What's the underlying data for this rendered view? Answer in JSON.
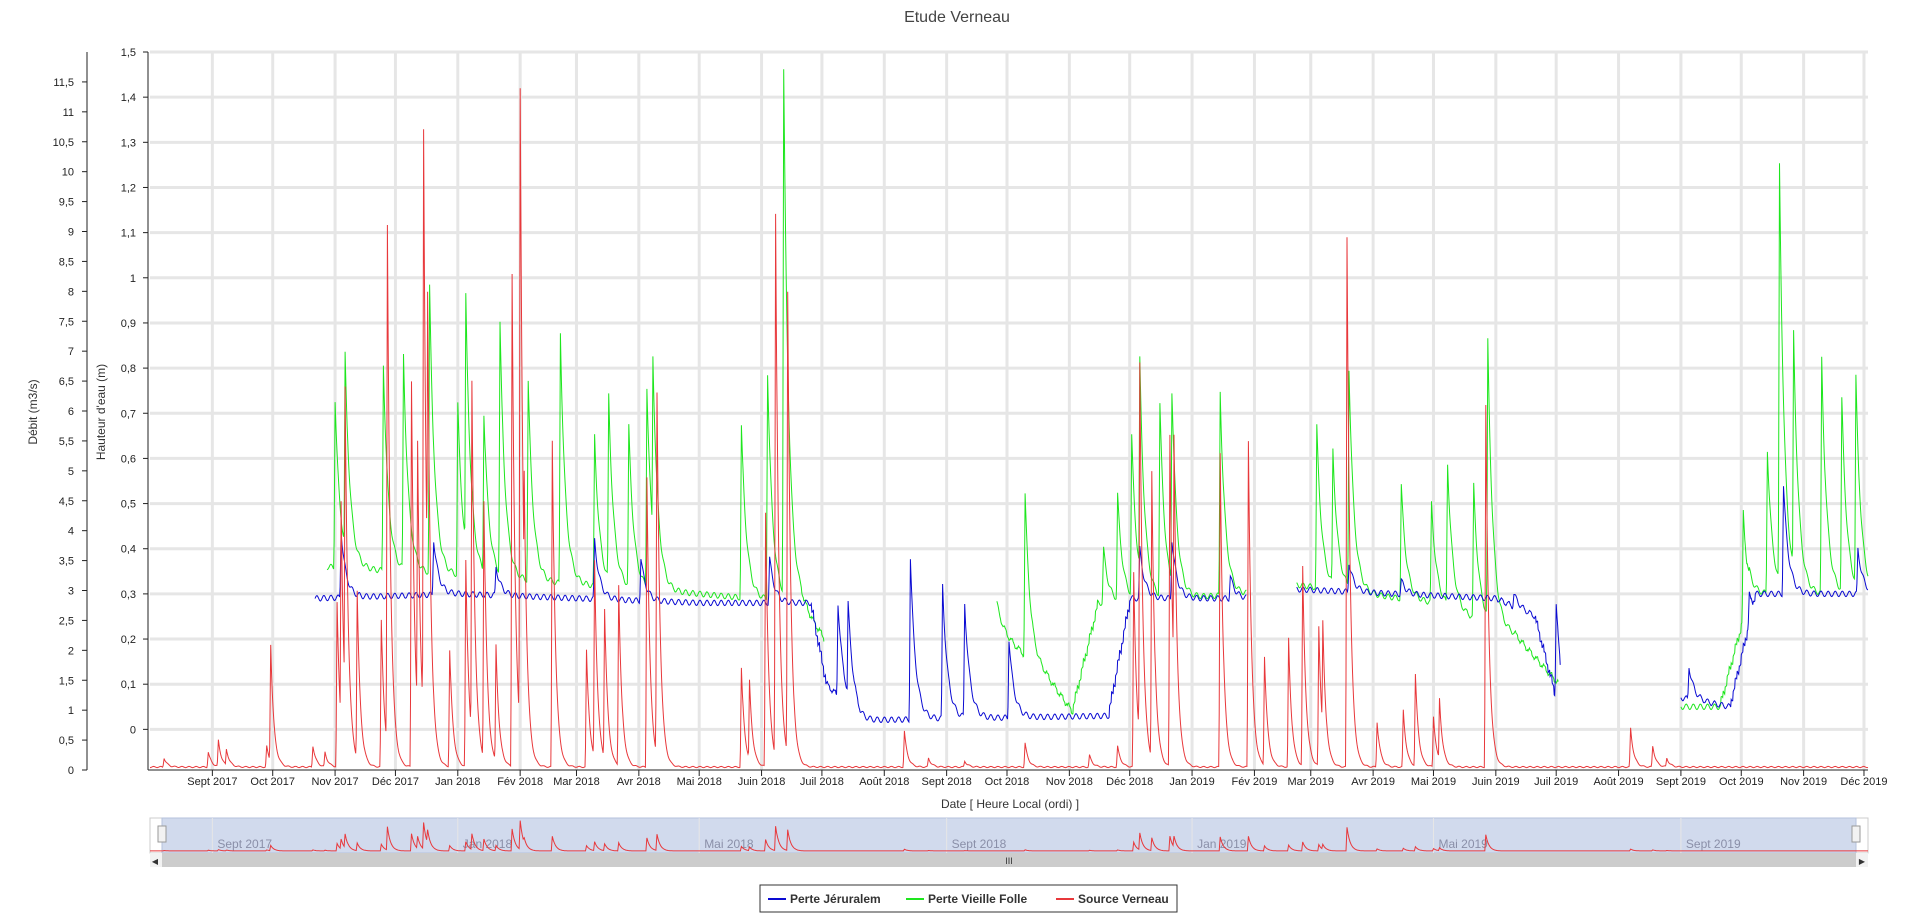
{
  "chart_data": {
    "type": "line",
    "title": "Etude Verneau",
    "xlabel": "Date [ Heure Local (ordi) ]",
    "ylabel_left": "Débit (m3/s)",
    "ylabel_right": "Hauteur d'eau (m)",
    "x_ticks": [
      "Sept 2017",
      "Oct 2017",
      "Nov 2017",
      "Déc 2017",
      "Jan 2018",
      "Fév 2018",
      "Mar 2018",
      "Avr 2018",
      "Mai 2018",
      "Juin 2018",
      "Juil 2018",
      "Août 2018",
      "Sept 2018",
      "Oct 2018",
      "Nov 2018",
      "Déc 2018",
      "Jan 2019",
      "Fév 2019",
      "Mar 2019",
      "Avr 2019",
      "Mai 2019",
      "Juin 2019",
      "Juil 2019",
      "Août 2019",
      "Sept 2019",
      "Oct 2019",
      "Nov 2019",
      "Déc 2019"
    ],
    "x_range": [
      "2017-08-01",
      "2019-12-03"
    ],
    "ylim_debit": [
      0,
      12
    ],
    "ylim_hauteur": [
      -0.09,
      1.5
    ],
    "y_ticks_debit": [
      "0",
      "0,5",
      "1",
      "1,5",
      "2",
      "2,5",
      "3",
      "3,5",
      "4",
      "4,5",
      "5",
      "5,5",
      "6",
      "6,5",
      "7",
      "7,5",
      "8",
      "8,5",
      "9",
      "9,5",
      "10",
      "10,5",
      "11",
      "11,5"
    ],
    "y_ticks_hauteur": [
      "0",
      "0,1",
      "0,2",
      "0,3",
      "0,4",
      "0,5",
      "0,6",
      "0,7",
      "0,8",
      "0,9",
      "1",
      "1,1",
      "1,2",
      "1,3",
      "1,4",
      "1,5"
    ],
    "grid": true,
    "legend_position": "bottom-center",
    "series": [
      {
        "name": "Source Verneau",
        "axis": "debit",
        "color": "#e8383b",
        "baseline": 0.05,
        "peaks": [
          [
            "2017-08-08",
            0.2
          ],
          [
            "2017-08-30",
            0.3
          ],
          [
            "2017-09-04",
            0.5
          ],
          [
            "2017-09-08",
            0.35
          ],
          [
            "2017-09-28",
            0.4
          ],
          [
            "2017-09-30",
            2.1
          ],
          [
            "2017-10-21",
            0.4
          ],
          [
            "2017-10-27",
            0.3
          ],
          [
            "2017-11-02",
            2.8
          ],
          [
            "2017-11-04",
            4.5
          ],
          [
            "2017-11-06",
            6.4
          ],
          [
            "2017-11-12",
            3.0
          ],
          [
            "2017-11-24",
            2.5
          ],
          [
            "2017-11-27",
            9.1
          ],
          [
            "2017-12-09",
            6.5
          ],
          [
            "2017-12-12",
            5.5
          ],
          [
            "2017-12-15",
            10.7
          ],
          [
            "2017-12-17",
            8.0
          ],
          [
            "2017-12-28",
            2.0
          ],
          [
            "2018-01-05",
            3.5
          ],
          [
            "2018-01-08",
            6.5
          ],
          [
            "2018-01-14",
            4.5
          ],
          [
            "2018-01-20",
            2.1
          ],
          [
            "2018-01-28",
            8.3
          ],
          [
            "2018-02-01",
            11.4
          ],
          [
            "2018-02-03",
            5.0
          ],
          [
            "2018-02-17",
            5.5
          ],
          [
            "2018-03-06",
            2.0
          ],
          [
            "2018-03-10",
            3.5
          ],
          [
            "2018-03-15",
            2.7
          ],
          [
            "2018-03-22",
            3.1
          ],
          [
            "2018-04-05",
            4.9
          ],
          [
            "2018-04-10",
            6.3
          ],
          [
            "2018-05-22",
            1.7
          ],
          [
            "2018-05-26",
            1.5
          ],
          [
            "2018-06-03",
            4.3
          ],
          [
            "2018-06-08",
            9.3
          ],
          [
            "2018-06-14",
            8.0
          ],
          [
            "2018-08-11",
            0.65
          ],
          [
            "2018-08-23",
            0.2
          ],
          [
            "2018-09-10",
            0.15
          ],
          [
            "2018-10-10",
            0.45
          ],
          [
            "2018-11-11",
            0.25
          ],
          [
            "2018-11-25",
            0.4
          ],
          [
            "2018-12-03",
            3.3
          ],
          [
            "2018-12-06",
            6.8
          ],
          [
            "2018-12-12",
            5.0
          ],
          [
            "2018-12-21",
            5.6
          ],
          [
            "2018-12-23",
            5.6
          ],
          [
            "2019-01-15",
            5.3
          ],
          [
            "2019-01-29",
            5.5
          ],
          [
            "2019-02-06",
            1.9
          ],
          [
            "2019-02-18",
            2.2
          ],
          [
            "2019-02-25",
            3.4
          ],
          [
            "2019-03-05",
            2.4
          ],
          [
            "2019-03-07",
            2.5
          ],
          [
            "2019-03-19",
            8.9
          ],
          [
            "2019-04-03",
            0.8
          ],
          [
            "2019-04-16",
            1.0
          ],
          [
            "2019-04-22",
            1.6
          ],
          [
            "2019-05-01",
            0.9
          ],
          [
            "2019-05-04",
            1.2
          ],
          [
            "2019-05-27",
            6.1
          ],
          [
            "2019-05-30",
            0.4
          ],
          [
            "2019-08-07",
            0.7
          ],
          [
            "2019-08-18",
            0.4
          ],
          [
            "2019-08-25",
            0.2
          ]
        ]
      },
      {
        "name": "Perte Vieille Folle",
        "axis": "hauteur",
        "color": "#1ee61e",
        "ranges": [
          [
            "2017-10-28",
            "2018-07-02"
          ],
          [
            "2018-09-26",
            "2018-11-02"
          ],
          [
            "2018-11-02",
            "2019-01-28"
          ],
          [
            "2019-02-22",
            "2019-07-02"
          ],
          [
            "2019-09-01",
            "2019-12-03"
          ]
        ],
        "baseline_points": [
          [
            "2017-10-28",
            0.36
          ],
          [
            "2018-01-01",
            0.34
          ],
          [
            "2018-05-01",
            0.3
          ],
          [
            "2018-06-20",
            0.28
          ],
          [
            "2018-07-02",
            0.2
          ],
          [
            "2018-09-26",
            0.22
          ],
          [
            "2018-10-20",
            0.12
          ],
          [
            "2018-11-02",
            0.04
          ],
          [
            "2018-11-15",
            0.28
          ],
          [
            "2019-01-28",
            0.3
          ],
          [
            "2019-02-22",
            0.32
          ],
          [
            "2019-05-01",
            0.28
          ],
          [
            "2019-06-10",
            0.21
          ],
          [
            "2019-07-02",
            0.1
          ],
          [
            "2019-09-01",
            0.05
          ],
          [
            "2019-09-20",
            0.05
          ],
          [
            "2019-10-05",
            0.3
          ],
          [
            "2019-12-03",
            0.3
          ]
        ],
        "peaks": [
          [
            "2017-11-01",
            0.73
          ],
          [
            "2017-11-06",
            0.83
          ],
          [
            "2017-11-25",
            0.81
          ],
          [
            "2017-12-05",
            0.83
          ],
          [
            "2017-12-18",
            0.98
          ],
          [
            "2018-01-01",
            0.72
          ],
          [
            "2018-01-05",
            0.96
          ],
          [
            "2018-01-14",
            0.7
          ],
          [
            "2018-01-22",
            0.9
          ],
          [
            "2018-02-05",
            0.77
          ],
          [
            "2018-02-21",
            0.88
          ],
          [
            "2018-03-10",
            0.65
          ],
          [
            "2018-03-17",
            0.74
          ],
          [
            "2018-03-27",
            0.67
          ],
          [
            "2018-04-05",
            0.76
          ],
          [
            "2018-04-08",
            0.83
          ],
          [
            "2018-05-22",
            0.67
          ],
          [
            "2018-06-04",
            0.79
          ],
          [
            "2018-06-12",
            1.46
          ],
          [
            "2018-09-26",
            0.28
          ],
          [
            "2018-10-10",
            0.52
          ],
          [
            "2018-11-18",
            0.4
          ],
          [
            "2018-11-25",
            0.52
          ],
          [
            "2018-12-02",
            0.65
          ],
          [
            "2018-12-06",
            0.82
          ],
          [
            "2018-12-16",
            0.72
          ],
          [
            "2018-12-22",
            0.75
          ],
          [
            "2019-01-15",
            0.75
          ],
          [
            "2019-01-30",
            0.72
          ],
          [
            "2019-03-04",
            0.67
          ],
          [
            "2019-03-12",
            0.62
          ],
          [
            "2019-03-20",
            0.8
          ],
          [
            "2019-04-15",
            0.54
          ],
          [
            "2019-04-30",
            0.5
          ],
          [
            "2019-05-08",
            0.59
          ],
          [
            "2019-05-21",
            0.54
          ],
          [
            "2019-05-28",
            0.86
          ],
          [
            "2019-10-02",
            0.48
          ],
          [
            "2019-10-14",
            0.62
          ],
          [
            "2019-10-20",
            1.25
          ],
          [
            "2019-10-27",
            0.88
          ],
          [
            "2019-11-10",
            0.82
          ],
          [
            "2019-11-20",
            0.73
          ],
          [
            "2019-11-27",
            0.78
          ]
        ]
      },
      {
        "name": "Perte Jéruralem",
        "axis": "hauteur",
        "color": "#0a0ad2",
        "ranges": [
          [
            "2017-10-22",
            "2018-07-20"
          ],
          [
            "2018-07-20",
            "2018-11-20"
          ],
          [
            "2018-11-20",
            "2019-01-28"
          ],
          [
            "2019-02-22",
            "2019-07-03"
          ],
          [
            "2019-09-01",
            "2019-12-03"
          ]
        ],
        "baseline_points": [
          [
            "2017-10-22",
            0.29
          ],
          [
            "2018-01-01",
            0.3
          ],
          [
            "2018-05-01",
            0.28
          ],
          [
            "2018-06-25",
            0.28
          ],
          [
            "2018-07-03",
            0.1
          ],
          [
            "2018-07-20",
            0.02
          ],
          [
            "2018-11-20",
            0.03
          ],
          [
            "2018-12-01",
            0.29
          ],
          [
            "2019-01-28",
            0.29
          ],
          [
            "2019-02-22",
            0.31
          ],
          [
            "2019-06-01",
            0.29
          ],
          [
            "2019-06-20",
            0.25
          ],
          [
            "2019-07-03",
            0.03
          ],
          [
            "2019-09-01",
            0.07
          ],
          [
            "2019-09-25",
            0.05
          ],
          [
            "2019-10-08",
            0.3
          ],
          [
            "2019-12-03",
            0.3
          ]
        ],
        "peaks": [
          [
            "2017-11-04",
            0.44
          ],
          [
            "2017-12-20",
            0.42
          ],
          [
            "2018-01-20",
            0.36
          ],
          [
            "2018-03-10",
            0.42
          ],
          [
            "2018-04-02",
            0.38
          ],
          [
            "2018-06-05",
            0.38
          ],
          [
            "2018-07-09",
            0.28
          ],
          [
            "2018-07-14",
            0.28
          ],
          [
            "2018-08-14",
            0.38
          ],
          [
            "2018-08-30",
            0.32
          ],
          [
            "2018-09-10",
            0.28
          ],
          [
            "2018-10-02",
            0.2
          ],
          [
            "2018-11-28",
            0.2
          ],
          [
            "2018-12-06",
            0.4
          ],
          [
            "2018-12-22",
            0.42
          ],
          [
            "2019-01-20",
            0.34
          ],
          [
            "2019-03-20",
            0.37
          ],
          [
            "2019-04-15",
            0.33
          ],
          [
            "2019-06-10",
            0.3
          ],
          [
            "2019-07-01",
            0.28
          ],
          [
            "2019-09-05",
            0.14
          ],
          [
            "2019-10-05",
            0.3
          ],
          [
            "2019-10-22",
            0.54
          ],
          [
            "2019-11-28",
            0.4
          ]
        ]
      }
    ]
  },
  "navigator": {
    "labels": [
      "Sept 2017",
      "Jan 2018",
      "Mai 2018",
      "Sept 2018",
      "Jan 2019",
      "Mai 2019",
      "Sept 2019"
    ],
    "scrollbar_grip": "III",
    "left_arrow": "◀",
    "right_arrow": "▶"
  },
  "legend": {
    "items": [
      {
        "label": "Perte Jéruralem",
        "color": "#0a0ad2"
      },
      {
        "label": "Perte Vieille Folle",
        "color": "#1ee61e"
      },
      {
        "label": "Source Verneau",
        "color": "#e8383b"
      }
    ]
  }
}
